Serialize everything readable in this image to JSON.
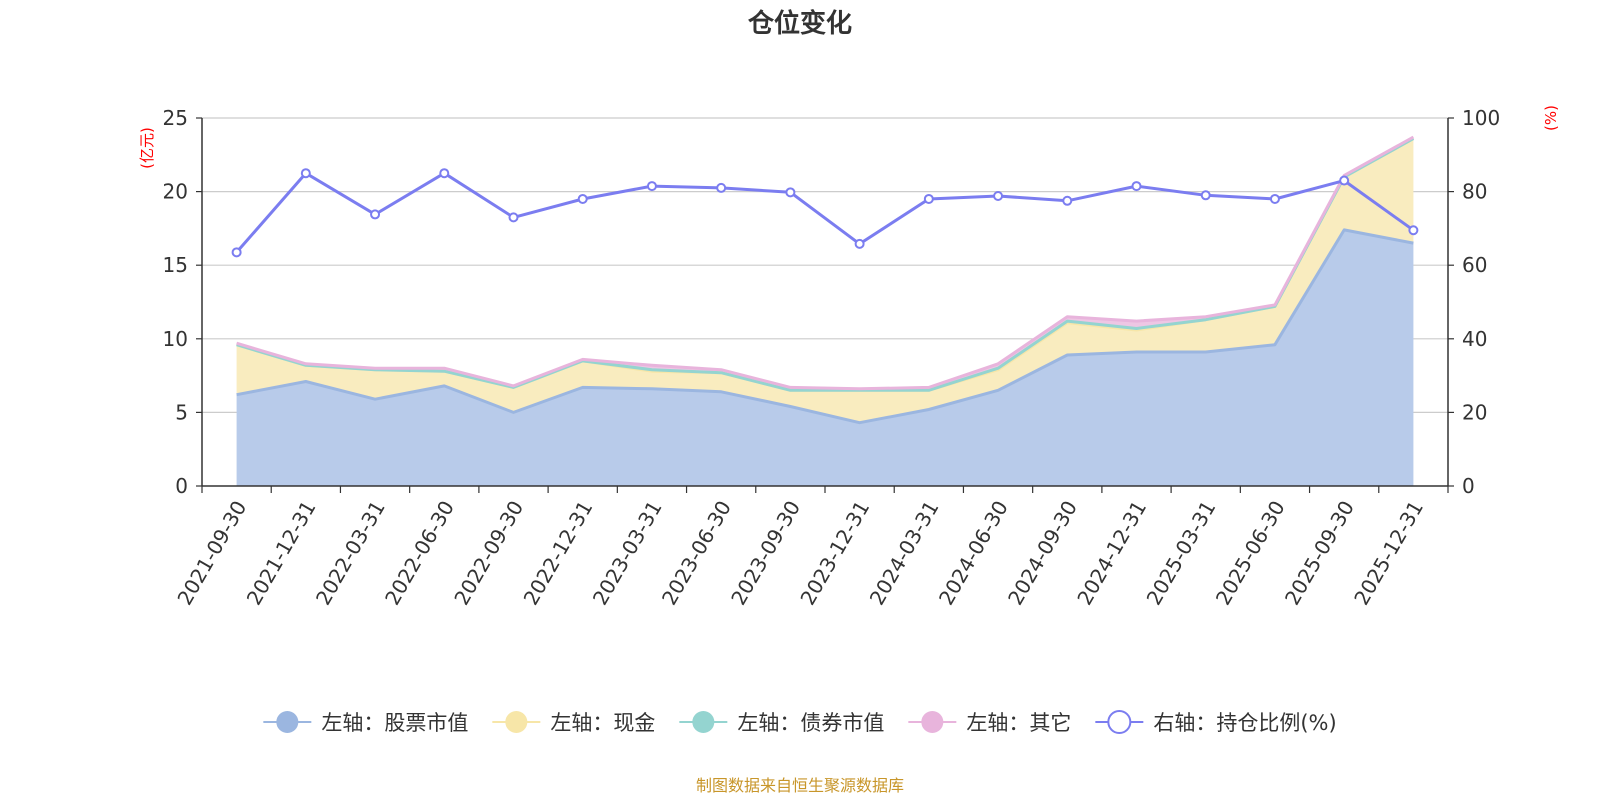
{
  "chart_data": {
    "type": "area",
    "title": "仓位变化",
    "left_axis_unit": "(亿元)",
    "right_axis_unit": "(%)",
    "ylim_left": [
      0,
      25
    ],
    "ylim_right": [
      0,
      100
    ],
    "y_ticks_left": [
      0,
      5,
      10,
      15,
      20,
      25
    ],
    "y_ticks_right": [
      0,
      20,
      40,
      60,
      80,
      100
    ],
    "grid": true,
    "legend_position": "bottom",
    "categories": [
      "2021-09-30",
      "2021-12-31",
      "2022-03-31",
      "2022-06-30",
      "2022-09-30",
      "2022-12-31",
      "2023-03-31",
      "2023-06-30",
      "2023-09-30",
      "2023-12-31",
      "2024-03-31",
      "2024-06-30",
      "2024-09-30",
      "2024-12-31",
      "2025-03-31",
      "2025-06-30",
      "2025-09-30",
      "2025-12-31"
    ],
    "series": [
      {
        "name": "左轴：股票市值",
        "axis": "left",
        "stacked": true,
        "color": "#9bb6e0",
        "fill": "#b8cbea",
        "values": [
          6.2,
          7.1,
          5.9,
          6.8,
          5.0,
          6.7,
          6.6,
          6.4,
          5.4,
          4.3,
          5.2,
          6.5,
          8.9,
          9.1,
          9.1,
          9.6,
          17.4,
          16.5
        ]
      },
      {
        "name": "左轴：现金",
        "axis": "left",
        "stacked": true,
        "color": "#f7e6a8",
        "fill": "#f9ecbf",
        "values": [
          3.4,
          1.1,
          2.0,
          1.0,
          1.7,
          1.8,
          1.2,
          1.3,
          1.1,
          2.2,
          1.3,
          1.4,
          2.2,
          1.5,
          2.2,
          2.6,
          3.6,
          7.1
        ]
      },
      {
        "name": "左轴：债券市值",
        "axis": "left",
        "stacked": true,
        "color": "#94d4d0",
        "fill": "#a8dcd8",
        "values": [
          0.0,
          0.0,
          0.0,
          0.0,
          0.0,
          0.0,
          0.1,
          0.0,
          0.0,
          0.0,
          0.0,
          0.1,
          0.1,
          0.1,
          0.0,
          0.0,
          0.0,
          0.0
        ]
      },
      {
        "name": "左轴：其它",
        "axis": "left",
        "stacked": true,
        "color": "#e8b4dc",
        "fill": "#eec6e4",
        "values": [
          0.1,
          0.1,
          0.1,
          0.2,
          0.1,
          0.1,
          0.3,
          0.2,
          0.2,
          0.1,
          0.2,
          0.3,
          0.3,
          0.5,
          0.2,
          0.1,
          0.1,
          0.1
        ]
      },
      {
        "name": "右轴：持仓比例(%)",
        "axis": "right",
        "stacked": false,
        "color": "#7b7df0",
        "values": [
          63.5,
          85.0,
          73.8,
          85.0,
          73.0,
          78.0,
          81.5,
          81.0,
          79.8,
          65.8,
          78.0,
          78.8,
          77.5,
          81.5,
          79.0,
          78.0,
          83.0,
          69.5
        ]
      }
    ]
  },
  "source_note": "制图数据来自恒生聚源数据库"
}
